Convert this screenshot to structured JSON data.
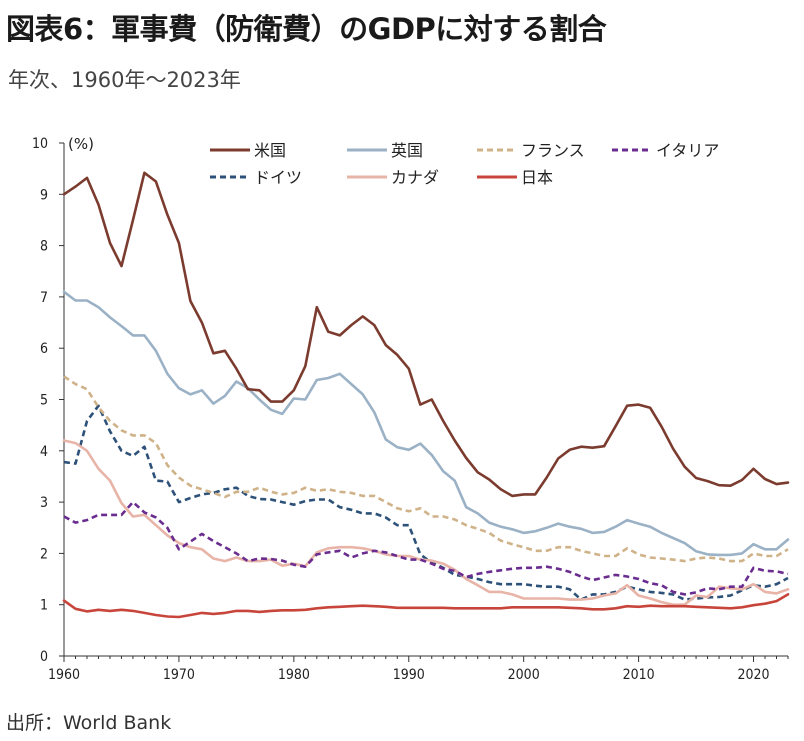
{
  "header": {
    "title": "図表6：軍事費（防衛費）のGDPに対する割合",
    "subtitle": "年次、1960年～2023年"
  },
  "footer": {
    "source": "出所：World Bank"
  },
  "chart_data": {
    "type": "line",
    "title": "図表6：軍事費（防衛費）のGDPに対する割合",
    "subtitle": "年次、1960年～2023年",
    "ylabel": "(%)",
    "xlabel": "",
    "xlim": [
      1960,
      2023
    ],
    "ylim": [
      0,
      10
    ],
    "xticks": [
      1960,
      1970,
      1980,
      1990,
      2000,
      2010,
      2020
    ],
    "yticks": [
      0,
      1,
      2,
      3,
      4,
      5,
      6,
      7,
      8,
      9,
      10
    ],
    "grid": false,
    "legend_position": "top",
    "x": [
      1960,
      1961,
      1962,
      1963,
      1964,
      1965,
      1966,
      1967,
      1968,
      1969,
      1970,
      1971,
      1972,
      1973,
      1974,
      1975,
      1976,
      1977,
      1978,
      1979,
      1980,
      1981,
      1982,
      1983,
      1984,
      1985,
      1986,
      1987,
      1988,
      1989,
      1990,
      1991,
      1992,
      1993,
      1994,
      1995,
      1996,
      1997,
      1998,
      1999,
      2000,
      2001,
      2002,
      2003,
      2004,
      2005,
      2006,
      2007,
      2008,
      2009,
      2010,
      2011,
      2012,
      2013,
      2014,
      2015,
      2016,
      2017,
      2018,
      2019,
      2020,
      2021,
      2022,
      2023
    ],
    "series": [
      {
        "name": "米国",
        "color": "#7b3b2e",
        "dash": "solid",
        "values": [
          9.0,
          9.15,
          9.32,
          8.8,
          8.05,
          7.6,
          8.5,
          9.42,
          9.25,
          8.6,
          8.05,
          6.92,
          6.5,
          5.9,
          5.95,
          5.6,
          5.2,
          5.18,
          4.96,
          4.96,
          5.18,
          5.65,
          6.8,
          6.32,
          6.25,
          6.45,
          6.62,
          6.45,
          6.06,
          5.87,
          5.6,
          4.9,
          5.0,
          4.58,
          4.2,
          3.86,
          3.58,
          3.44,
          3.25,
          3.12,
          3.15,
          3.15,
          3.48,
          3.85,
          4.02,
          4.08,
          4.06,
          4.09,
          4.48,
          4.88,
          4.9,
          4.84,
          4.47,
          4.04,
          3.69,
          3.47,
          3.41,
          3.33,
          3.32,
          3.43,
          3.65,
          3.45,
          3.35,
          3.38
        ]
      },
      {
        "name": "英国",
        "color": "#9bb1c5",
        "dash": "solid",
        "values": [
          7.1,
          6.93,
          6.93,
          6.8,
          6.6,
          6.43,
          6.25,
          6.25,
          5.95,
          5.5,
          5.22,
          5.1,
          5.18,
          4.92,
          5.07,
          5.35,
          5.22,
          5.0,
          4.8,
          4.72,
          5.02,
          5.0,
          5.38,
          5.42,
          5.5,
          5.3,
          5.1,
          4.75,
          4.22,
          4.07,
          4.02,
          4.14,
          3.92,
          3.6,
          3.42,
          2.9,
          2.78,
          2.6,
          2.52,
          2.47,
          2.4,
          2.43,
          2.5,
          2.58,
          2.52,
          2.48,
          2.4,
          2.42,
          2.52,
          2.65,
          2.58,
          2.52,
          2.4,
          2.3,
          2.2,
          2.04,
          1.98,
          1.97,
          1.97,
          2.0,
          2.18,
          2.08,
          2.08,
          2.27
        ]
      },
      {
        "name": "フランス",
        "color": "#cfb288",
        "dash": "dash",
        "values": [
          5.45,
          5.3,
          5.2,
          4.85,
          4.58,
          4.4,
          4.3,
          4.3,
          4.15,
          3.72,
          3.48,
          3.32,
          3.25,
          3.18,
          3.1,
          3.2,
          3.2,
          3.28,
          3.2,
          3.15,
          3.18,
          3.28,
          3.22,
          3.25,
          3.2,
          3.18,
          3.12,
          3.12,
          3.0,
          2.88,
          2.82,
          2.88,
          2.72,
          2.72,
          2.66,
          2.55,
          2.48,
          2.4,
          2.25,
          2.18,
          2.12,
          2.05,
          2.05,
          2.12,
          2.12,
          2.05,
          2.0,
          1.95,
          1.95,
          2.1,
          1.98,
          1.92,
          1.9,
          1.88,
          1.85,
          1.9,
          1.92,
          1.9,
          1.85,
          1.85,
          2.0,
          1.95,
          1.95,
          2.08
        ]
      },
      {
        "name": "イタリア",
        "color": "#6a2d8f",
        "dash": "dash",
        "values": [
          2.72,
          2.6,
          2.65,
          2.75,
          2.75,
          2.75,
          3.0,
          2.8,
          2.7,
          2.5,
          2.08,
          2.23,
          2.38,
          2.24,
          2.12,
          2.0,
          1.85,
          1.9,
          1.89,
          1.86,
          1.78,
          1.74,
          1.98,
          2.02,
          2.05,
          1.92,
          2.0,
          2.05,
          2.02,
          1.95,
          1.88,
          1.88,
          1.8,
          1.7,
          1.66,
          1.54,
          1.6,
          1.64,
          1.67,
          1.7,
          1.72,
          1.72,
          1.74,
          1.7,
          1.64,
          1.55,
          1.48,
          1.53,
          1.58,
          1.55,
          1.5,
          1.42,
          1.38,
          1.25,
          1.2,
          1.24,
          1.32,
          1.3,
          1.35,
          1.35,
          1.72,
          1.66,
          1.65,
          1.6
        ]
      },
      {
        "name": "ドイツ",
        "color": "#2d5178",
        "dash": "dash",
        "values": [
          3.78,
          3.75,
          4.58,
          4.88,
          4.38,
          4.0,
          3.9,
          4.08,
          3.42,
          3.4,
          3.0,
          3.08,
          3.15,
          3.18,
          3.25,
          3.28,
          3.12,
          3.06,
          3.05,
          3.0,
          2.95,
          3.02,
          3.05,
          3.05,
          2.9,
          2.85,
          2.78,
          2.78,
          2.7,
          2.55,
          2.55,
          1.98,
          1.82,
          1.72,
          1.58,
          1.55,
          1.5,
          1.44,
          1.4,
          1.4,
          1.4,
          1.37,
          1.35,
          1.35,
          1.3,
          1.1,
          1.2,
          1.2,
          1.25,
          1.35,
          1.3,
          1.25,
          1.23,
          1.2,
          1.1,
          1.12,
          1.14,
          1.15,
          1.18,
          1.28,
          1.38,
          1.35,
          1.4,
          1.52
        ]
      },
      {
        "name": "カナダ",
        "color": "#e8b4a8",
        "dash": "solid",
        "values": [
          4.2,
          4.15,
          4.0,
          3.65,
          3.42,
          2.98,
          2.72,
          2.75,
          2.55,
          2.35,
          2.2,
          2.12,
          2.08,
          1.9,
          1.85,
          1.92,
          1.85,
          1.85,
          1.88,
          1.76,
          1.8,
          1.75,
          2.02,
          2.1,
          2.12,
          2.12,
          2.1,
          2.05,
          1.98,
          1.95,
          1.95,
          1.88,
          1.86,
          1.8,
          1.68,
          1.5,
          1.38,
          1.25,
          1.25,
          1.2,
          1.12,
          1.12,
          1.12,
          1.12,
          1.1,
          1.1,
          1.12,
          1.18,
          1.22,
          1.38,
          1.18,
          1.12,
          1.05,
          1.0,
          1.0,
          1.18,
          1.15,
          1.35,
          1.32,
          1.3,
          1.4,
          1.25,
          1.22,
          1.3
        ]
      },
      {
        "name": "日本",
        "color": "#c8453c",
        "dash": "solid",
        "values": [
          1.08,
          0.92,
          0.87,
          0.9,
          0.88,
          0.9,
          0.88,
          0.84,
          0.8,
          0.77,
          0.76,
          0.8,
          0.84,
          0.82,
          0.84,
          0.88,
          0.88,
          0.86,
          0.88,
          0.89,
          0.89,
          0.9,
          0.93,
          0.95,
          0.96,
          0.97,
          0.98,
          0.97,
          0.96,
          0.94,
          0.94,
          0.94,
          0.94,
          0.94,
          0.93,
          0.93,
          0.93,
          0.93,
          0.93,
          0.95,
          0.95,
          0.95,
          0.95,
          0.95,
          0.94,
          0.93,
          0.91,
          0.91,
          0.93,
          0.97,
          0.96,
          0.98,
          0.97,
          0.97,
          0.97,
          0.96,
          0.95,
          0.94,
          0.93,
          0.95,
          0.99,
          1.02,
          1.07,
          1.2
        ]
      }
    ]
  }
}
